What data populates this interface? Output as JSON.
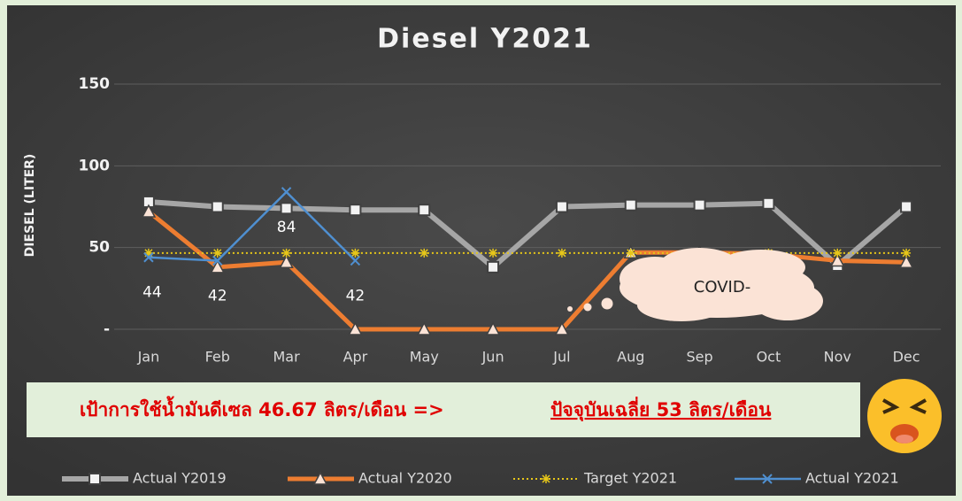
{
  "chart_data": {
    "type": "line",
    "title": "Diesel Y2021",
    "y_label": "DIESEL (LITER)",
    "categories": [
      "Jan",
      "Feb",
      "Mar",
      "Apr",
      "May",
      "Jun",
      "Jul",
      "Aug",
      "Sep",
      "Oct",
      "Nov",
      "Dec"
    ],
    "ylim": [
      0,
      150
    ],
    "yticks": [
      {
        "value": 0,
        "label": "-"
      },
      50,
      100,
      150
    ],
    "grid": true,
    "legend": "bottom",
    "series": [
      {
        "name": "Actual Y2019",
        "color": "#a6a6a6",
        "marker": "square",
        "style": "solid",
        "width": 6,
        "values": [
          78,
          75,
          74,
          73,
          73,
          38,
          75,
          76,
          76,
          77,
          39,
          75
        ]
      },
      {
        "name": "Actual Y2020",
        "color": "#ed7d31",
        "marker": "triangle",
        "style": "solid",
        "width": 5,
        "values": [
          72,
          38,
          41,
          0,
          0,
          0,
          0,
          47,
          47,
          46,
          42,
          41
        ]
      },
      {
        "name": "Target Y2021",
        "color": "#e6c619",
        "marker": "star",
        "style": "dotted",
        "width": 2,
        "values": [
          46.67,
          46.67,
          46.67,
          46.67,
          46.67,
          46.67,
          46.67,
          46.67,
          46.67,
          46.67,
          46.67,
          46.67
        ]
      },
      {
        "name": "Actual Y2021",
        "color": "#4f8fd0",
        "marker": "x",
        "style": "solid",
        "width": 2.5,
        "values": [
          44,
          42,
          84,
          42,
          null,
          null,
          null,
          null,
          null,
          null,
          null,
          null
        ],
        "value_labels": [
          "44",
          "42",
          "84",
          "42",
          null,
          null,
          null,
          null,
          null,
          null,
          null,
          null
        ]
      }
    ],
    "annotations": {
      "banner_left": "เป้าการใช้น้ำมันดีเซล 46.67 ลิตร/เดือน  =>",
      "banner_right": "ปัจจุบันเฉลี่ย 53 ลิตร/เดือน",
      "cloud": "COVID-"
    }
  }
}
